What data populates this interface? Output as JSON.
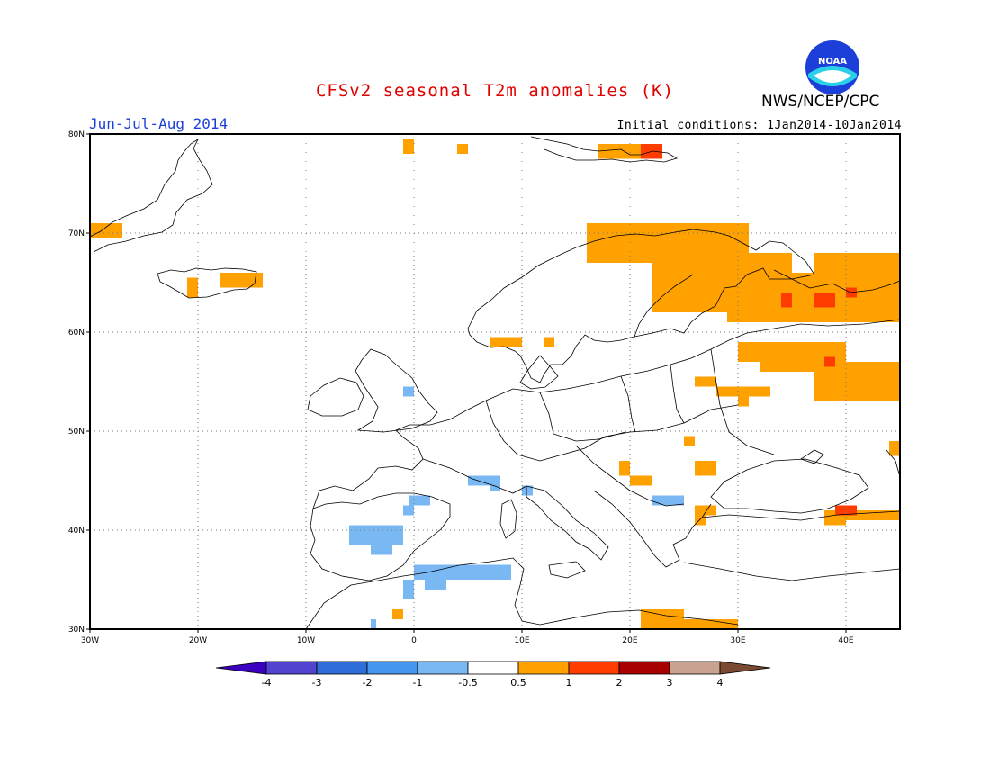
{
  "header": {
    "title": "CFSv2 seasonal T2m anomalies (K)",
    "agency": "NWS/NCEP/CPC",
    "season": "Jun-Jul-Aug 2014",
    "initial_conditions": "Initial conditions: 1Jan2014-10Jan2014",
    "logo_text": "NOAA"
  },
  "map": {
    "lon_range": [
      -30,
      45
    ],
    "lat_range": [
      30,
      80
    ],
    "lat_ticks": [
      {
        "value": 80,
        "label": "80N"
      },
      {
        "value": 70,
        "label": "70N"
      },
      {
        "value": 60,
        "label": "60N"
      },
      {
        "value": 50,
        "label": "50N"
      },
      {
        "value": 40,
        "label": "40N"
      },
      {
        "value": 30,
        "label": "30N"
      }
    ],
    "lon_ticks": [
      {
        "value": -30,
        "label": "30W"
      },
      {
        "value": -20,
        "label": "20W"
      },
      {
        "value": -10,
        "label": "10W"
      },
      {
        "value": 0,
        "label": "0"
      },
      {
        "value": 10,
        "label": "10E"
      },
      {
        "value": 20,
        "label": "20E"
      },
      {
        "value": 30,
        "label": "30E"
      },
      {
        "value": 40,
        "label": "40E"
      }
    ],
    "grid": true,
    "anomaly_cells": [
      {
        "lon": [
          -30,
          -27
        ],
        "lat": [
          69.5,
          71
        ],
        "bin": "0.5-1"
      },
      {
        "lon": [
          -21,
          -20
        ],
        "lat": [
          63.5,
          65.5
        ],
        "bin": "0.5-1"
      },
      {
        "lon": [
          -18,
          -14
        ],
        "lat": [
          64.5,
          66
        ],
        "bin": "0.5-1"
      },
      {
        "lon": [
          -1,
          0
        ],
        "lat": [
          78,
          79.5
        ],
        "bin": "0.5-1"
      },
      {
        "lon": [
          4,
          5
        ],
        "lat": [
          78,
          79
        ],
        "bin": "0.5-1"
      },
      {
        "lon": [
          17,
          21
        ],
        "lat": [
          77.5,
          79
        ],
        "bin": "0.5-1"
      },
      {
        "lon": [
          21,
          23
        ],
        "lat": [
          77.5,
          79
        ],
        "bin": "1-2"
      },
      {
        "lon": [
          16,
          31
        ],
        "lat": [
          67,
          71
        ],
        "bin": "0.5-1"
      },
      {
        "lon": [
          22,
          35
        ],
        "lat": [
          62,
          68
        ],
        "bin": "0.5-1"
      },
      {
        "lon": [
          29,
          45
        ],
        "lat": [
          61,
          66
        ],
        "bin": "0.5-1"
      },
      {
        "lon": [
          37,
          45
        ],
        "lat": [
          66,
          68
        ],
        "bin": "0.5-1"
      },
      {
        "lon": [
          34,
          35
        ],
        "lat": [
          62.5,
          64
        ],
        "bin": "1-2"
      },
      {
        "lon": [
          37,
          39
        ],
        "lat": [
          62.5,
          64
        ],
        "bin": "1-2"
      },
      {
        "lon": [
          40,
          41
        ],
        "lat": [
          63.5,
          64.5
        ],
        "bin": "1-2"
      },
      {
        "lon": [
          30,
          33
        ],
        "lat": [
          57,
          59
        ],
        "bin": "0.5-1"
      },
      {
        "lon": [
          32,
          40
        ],
        "lat": [
          56,
          59
        ],
        "bin": "0.5-1"
      },
      {
        "lon": [
          37,
          45
        ],
        "lat": [
          53,
          57
        ],
        "bin": "0.5-1"
      },
      {
        "lon": [
          38,
          39
        ],
        "lat": [
          56.5,
          57.5
        ],
        "bin": "1-2"
      },
      {
        "lon": [
          7,
          10
        ],
        "lat": [
          58.5,
          59.5
        ],
        "bin": "0.5-1"
      },
      {
        "lon": [
          12,
          13
        ],
        "lat": [
          58.5,
          59.5
        ],
        "bin": "0.5-1"
      },
      {
        "lon": [
          26,
          28
        ],
        "lat": [
          54.5,
          55.5
        ],
        "bin": "0.5-1"
      },
      {
        "lon": [
          28,
          33
        ],
        "lat": [
          53.5,
          54.5
        ],
        "bin": "0.5-1"
      },
      {
        "lon": [
          30,
          31
        ],
        "lat": [
          52.5,
          54.5
        ],
        "bin": "0.5-1"
      },
      {
        "lon": [
          25,
          26
        ],
        "lat": [
          48.5,
          49.5
        ],
        "bin": "0.5-1"
      },
      {
        "lon": [
          26,
          28
        ],
        "lat": [
          45.5,
          47
        ],
        "bin": "0.5-1"
      },
      {
        "lon": [
          19,
          20
        ],
        "lat": [
          45.5,
          47
        ],
        "bin": "0.5-1"
      },
      {
        "lon": [
          20,
          22
        ],
        "lat": [
          44.5,
          45.5
        ],
        "bin": "0.5-1"
      },
      {
        "lon": [
          44,
          45
        ],
        "lat": [
          47.5,
          49
        ],
        "bin": "0.5-1"
      },
      {
        "lon": [
          26,
          27
        ],
        "lat": [
          40.5,
          42.5
        ],
        "bin": "0.5-1"
      },
      {
        "lon": [
          27,
          28
        ],
        "lat": [
          41.5,
          42.5
        ],
        "bin": "0.5-1"
      },
      {
        "lon": [
          38,
          45
        ],
        "lat": [
          41,
          42
        ],
        "bin": "0.5-1"
      },
      {
        "lon": [
          39,
          41
        ],
        "lat": [
          41.5,
          42.5
        ],
        "bin": "1-2"
      },
      {
        "lon": [
          38,
          40
        ],
        "lat": [
          40.5,
          41.5
        ],
        "bin": "0.5-1"
      },
      {
        "lon": [
          -2,
          -1
        ],
        "lat": [
          31,
          32
        ],
        "bin": "0.5-1"
      },
      {
        "lon": [
          21,
          25
        ],
        "lat": [
          30,
          32
        ],
        "bin": "0.5-1"
      },
      {
        "lon": [
          25,
          30
        ],
        "lat": [
          30,
          31
        ],
        "bin": "0.5-1"
      },
      {
        "lon": [
          -1,
          0
        ],
        "lat": [
          53.5,
          54.5
        ],
        "bin": "-1--0.5"
      },
      {
        "lon": [
          5,
          8
        ],
        "lat": [
          44.5,
          45.5
        ],
        "bin": "-1--0.5"
      },
      {
        "lon": [
          7,
          8
        ],
        "lat": [
          44,
          45
        ],
        "bin": "-1--0.5"
      },
      {
        "lon": [
          10,
          11
        ],
        "lat": [
          43.5,
          44.5
        ],
        "bin": "-1--0.5"
      },
      {
        "lon": [
          -0.5,
          1.5
        ],
        "lat": [
          42.5,
          43.5
        ],
        "bin": "-1--0.5"
      },
      {
        "lon": [
          -1,
          0
        ],
        "lat": [
          41.5,
          42.5
        ],
        "bin": "-1--0.5"
      },
      {
        "lon": [
          -6,
          -1
        ],
        "lat": [
          38.5,
          40.5
        ],
        "bin": "-1--0.5"
      },
      {
        "lon": [
          -4,
          -2
        ],
        "lat": [
          37.5,
          38.5
        ],
        "bin": "-1--0.5"
      },
      {
        "lon": [
          22,
          25
        ],
        "lat": [
          42.5,
          43.5
        ],
        "bin": "-1--0.5"
      },
      {
        "lon": [
          0,
          9
        ],
        "lat": [
          35,
          36.5
        ],
        "bin": "-1--0.5"
      },
      {
        "lon": [
          1,
          3
        ],
        "lat": [
          34,
          35
        ],
        "bin": "-1--0.5"
      },
      {
        "lon": [
          -1,
          0
        ],
        "lat": [
          33,
          35
        ],
        "bin": "-1--0.5"
      },
      {
        "lon": [
          -4,
          -3.5
        ],
        "lat": [
          30,
          31
        ],
        "bin": "-1--0.5"
      }
    ]
  },
  "colorbar": {
    "levels": [
      "-4",
      "-3",
      "-2",
      "-1",
      "-0.5",
      "0.5",
      "1",
      "2",
      "3",
      "4"
    ],
    "colors": [
      "#3b00c0",
      "#5244d0",
      "#2f6ed8",
      "#4496ee",
      "#7ab8f4",
      "#ffffff",
      "#ffa100",
      "#ff3c00",
      "#a80000",
      "#c9a291",
      "#7a4a33"
    ]
  }
}
